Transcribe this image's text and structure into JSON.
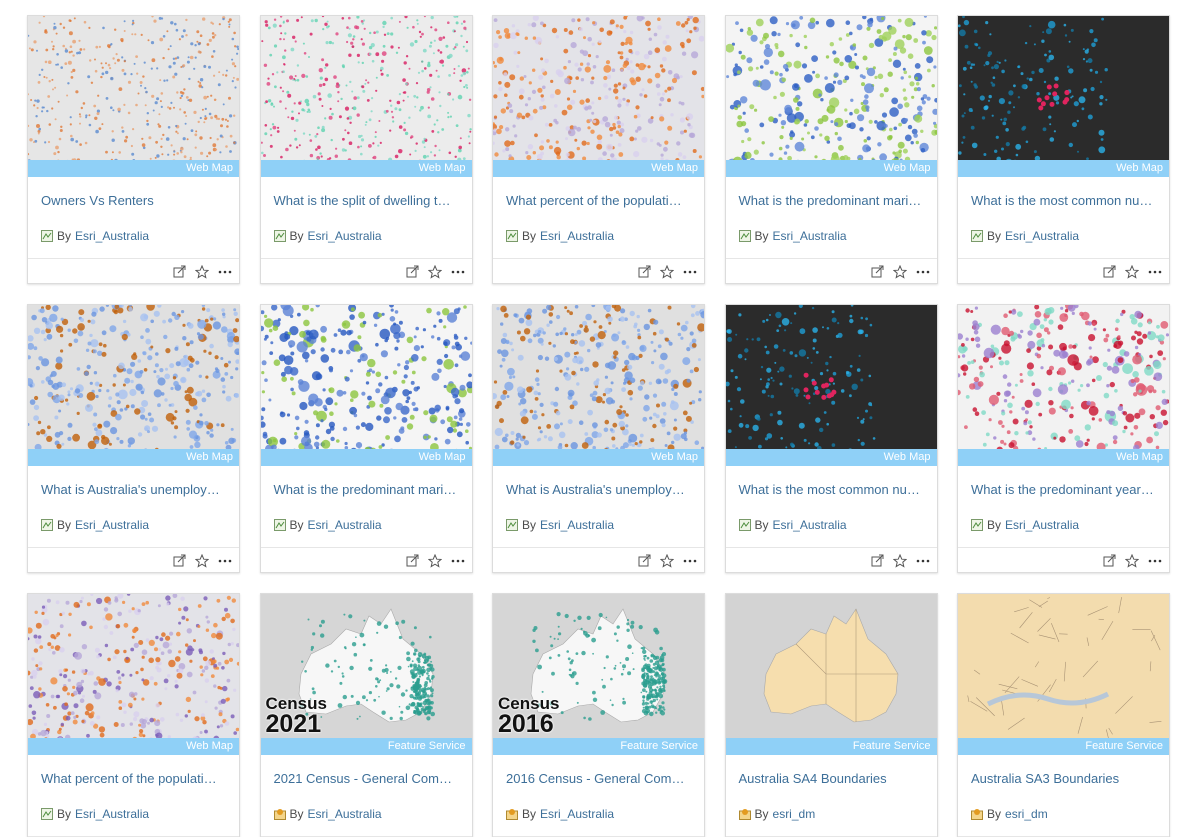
{
  "cards": [
    {
      "type": "Web Map",
      "title": "Owners Vs Renters",
      "by": "By",
      "owner": "Esri_Australia"
    },
    {
      "type": "Web Map",
      "title": "What is the split of dwelling t…",
      "by": "By",
      "owner": "Esri_Australia"
    },
    {
      "type": "Web Map",
      "title": "What percent of the populati…",
      "by": "By",
      "owner": "Esri_Australia"
    },
    {
      "type": "Web Map",
      "title": "What is the predominant mari…",
      "by": "By",
      "owner": "Esri_Australia"
    },
    {
      "type": "Web Map",
      "title": "What is the most common nu…",
      "by": "By",
      "owner": "Esri_Australia"
    },
    {
      "type": "Web Map",
      "title": "What is Australia's unemploy…",
      "by": "By",
      "owner": "Esri_Australia"
    },
    {
      "type": "Web Map",
      "title": "What is the predominant mari…",
      "by": "By",
      "owner": "Esri_Australia"
    },
    {
      "type": "Web Map",
      "title": "What is Australia's unemploy…",
      "by": "By",
      "owner": "Esri_Australia"
    },
    {
      "type": "Web Map",
      "title": "What is the most common nu…",
      "by": "By",
      "owner": "Esri_Australia"
    },
    {
      "type": "Web Map",
      "title": "What is the predominant year…",
      "by": "By",
      "owner": "Esri_Australia"
    },
    {
      "type": "Web Map",
      "title": "What percent of the populati…",
      "by": "By",
      "owner": "Esri_Australia"
    },
    {
      "thumbnail_text": [
        "Census",
        "2021"
      ],
      "type": "Feature Service",
      "title": "2021 Census - General Com…",
      "by": "By",
      "owner": "Esri_Australia"
    },
    {
      "thumbnail_text": [
        "Census",
        "2016"
      ],
      "type": "Feature Service",
      "title": "2016 Census - General Com…",
      "by": "By",
      "owner": "Esri_Australia"
    },
    {
      "type": "Feature Service",
      "title": "Australia SA4 Boundaries",
      "by": "By",
      "owner": "esri_dm"
    },
    {
      "type": "Feature Service",
      "title": "Australia SA3 Boundaries",
      "by": "By",
      "owner": "esri_dm"
    }
  ]
}
